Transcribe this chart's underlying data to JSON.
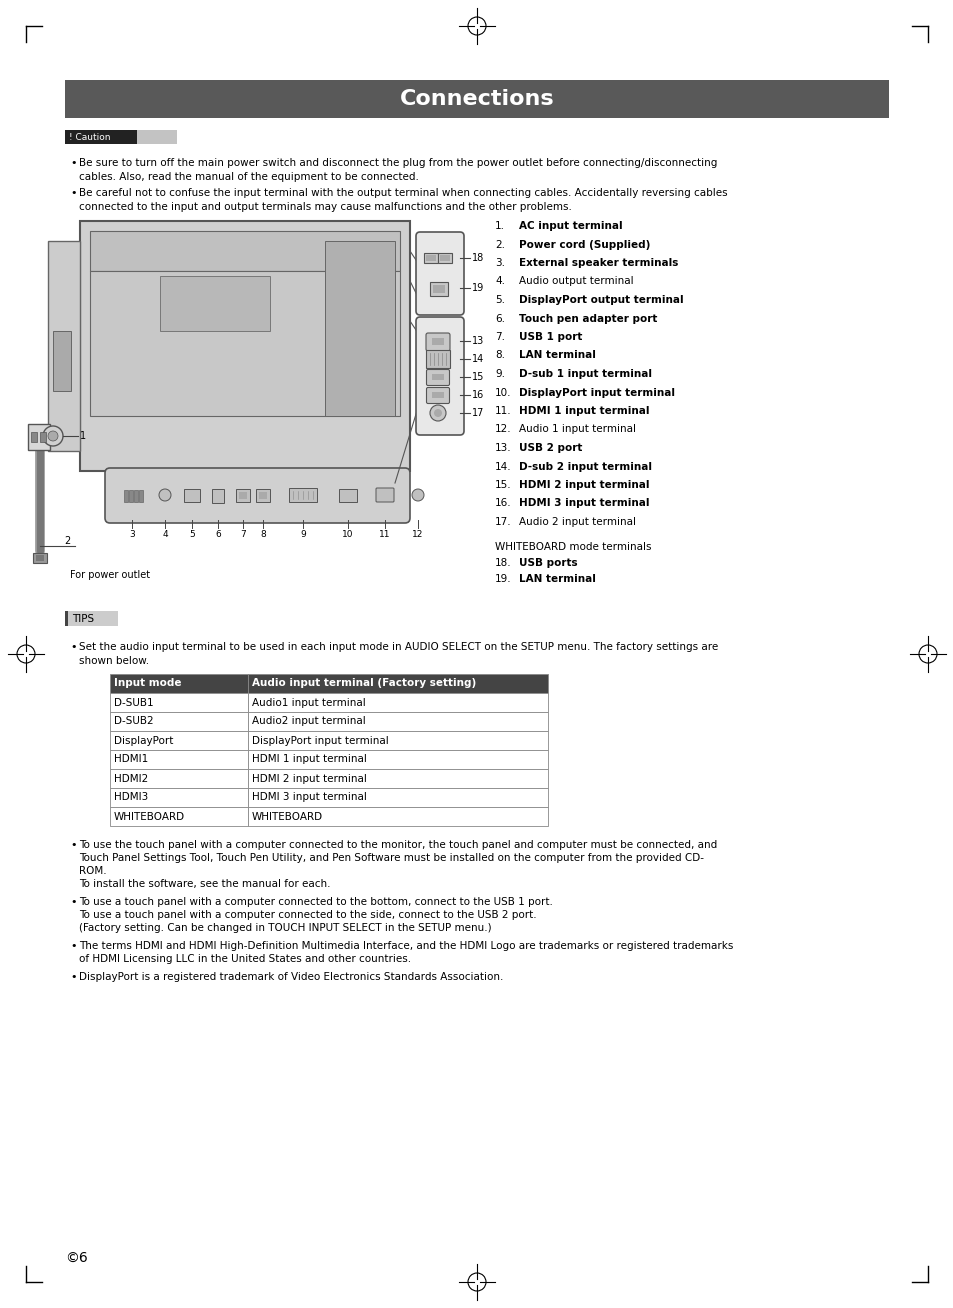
{
  "title": "Connections",
  "title_bg": "#595959",
  "title_color": "#ffffff",
  "page_bg": "#ffffff",
  "caution_label": "! Caution",
  "caution_bullets": [
    "Be sure to turn off the main power switch and disconnect the plug from the power outlet before connecting/disconnecting\ncables. Also, read the manual of the equipment to be connected.",
    "Be careful not to confuse the input terminal with the output terminal when connecting cables. Accidentally reversing cables\nconnected to the input and output terminals may cause malfunctions and the other problems."
  ],
  "tips_label": "TIPS",
  "tips_intro_line1": "Set the audio input terminal to be used in each input mode in AUDIO SELECT on the SETUP menu. The factory settings are",
  "tips_intro_line2": "shown below.",
  "table_header": [
    "Input mode",
    "Audio input terminal (Factory setting)"
  ],
  "table_rows": [
    [
      "D-SUB1",
      "Audio1 input terminal"
    ],
    [
      "D-SUB2",
      "Audio2 input terminal"
    ],
    [
      "DisplayPort",
      "DisplayPort input terminal"
    ],
    [
      "HDMI1",
      "HDMI 1 input terminal"
    ],
    [
      "HDMI2",
      "HDMI 2 input terminal"
    ],
    [
      "HDMI3",
      "HDMI 3 input terminal"
    ],
    [
      "WHITEBOARD",
      "WHITEBOARD"
    ]
  ],
  "tips_bullets": [
    [
      "To use the touch panel with a computer connected to the monitor, the touch panel and computer must be connected, and",
      "Touch Panel Settings Tool, Touch Pen Utility, and Pen Software must be installed on the computer from the provided CD-",
      "ROM.",
      "To install the software, see the manual for each."
    ],
    [
      "To use a touch panel with a computer connected to the bottom, connect to the USB 1 port.",
      "To use a touch panel with a computer connected to the side, connect to the USB 2 port.",
      "(Factory setting. Can be changed in TOUCH INPUT SELECT in the SETUP menu.)"
    ],
    [
      "The terms HDMI and HDMI High-Definition Multimedia Interface, and the HDMI Logo are trademarks or registered trademarks",
      "of HDMI Licensing LLC in the United States and other countries."
    ],
    [
      "DisplayPort is a registered trademark of Video Electronics Standards Association."
    ]
  ],
  "numbered_labels": [
    [
      "1.",
      "AC input terminal",
      true
    ],
    [
      "2.",
      "Power cord (Supplied)",
      true
    ],
    [
      "3.",
      "External speaker terminals",
      true
    ],
    [
      "4.",
      "Audio output terminal",
      false
    ],
    [
      "5.",
      "DisplayPort output terminal",
      true
    ],
    [
      "6.",
      "Touch pen adapter port",
      true
    ],
    [
      "7.",
      "USB 1 port",
      true
    ],
    [
      "8.",
      "LAN terminal",
      true
    ],
    [
      "9.",
      "D-sub 1 input terminal",
      true
    ],
    [
      "10.",
      "DisplayPort input terminal",
      true
    ],
    [
      "11.",
      "HDMI 1 input terminal",
      true
    ],
    [
      "12.",
      "Audio 1 input terminal",
      false
    ],
    [
      "13.",
      "USB 2 port",
      true
    ],
    [
      "14.",
      "D-sub 2 input terminal",
      true
    ],
    [
      "15.",
      "HDMI 2 input terminal",
      true
    ],
    [
      "16.",
      "HDMI 3 input terminal",
      true
    ],
    [
      "17.",
      "Audio 2 input terminal",
      false
    ]
  ],
  "whiteboard_label": "WHITEBOARD mode terminals",
  "whiteboard_items": [
    [
      "18.",
      "USB ports",
      true
    ],
    [
      "19.",
      "LAN terminal",
      true
    ]
  ],
  "for_power": "For power outlet",
  "page_number": "6"
}
